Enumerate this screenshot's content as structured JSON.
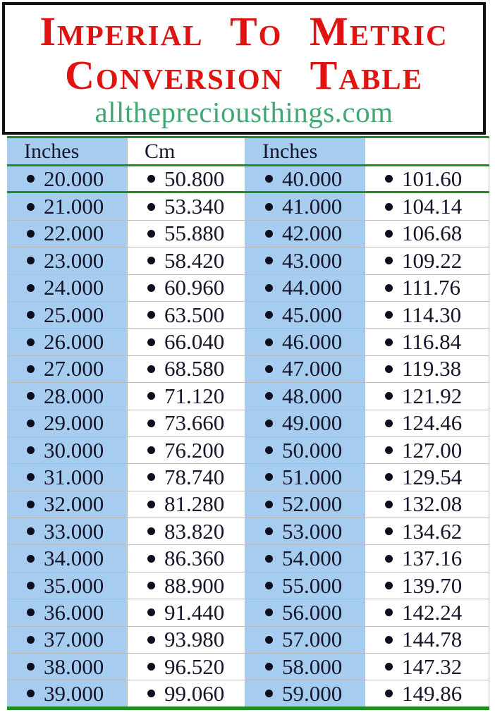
{
  "header": {
    "title_line1": "Imperial To Metric",
    "title_line2": "Conversion Table",
    "website": "allthepreciousthings.com"
  },
  "table": {
    "columns": [
      "Inches",
      "Cm",
      "Inches",
      ""
    ],
    "rows": [
      [
        "20.000",
        "50.800",
        "40.000",
        "101.60"
      ],
      [
        "21.000",
        "53.340",
        "41.000",
        "104.14"
      ],
      [
        "22.000",
        "55.880",
        "42.000",
        "106.68"
      ],
      [
        "23.000",
        "58.420",
        "43.000",
        "109.22"
      ],
      [
        "24.000",
        "60.960",
        "44.000",
        "111.76"
      ],
      [
        "25.000",
        "63.500",
        "45.000",
        "114.30"
      ],
      [
        "26.000",
        "66.040",
        "46.000",
        "116.84"
      ],
      [
        "27.000",
        "68.580",
        "47.000",
        "119.38"
      ],
      [
        "28.000",
        "71.120",
        "48.000",
        "121.92"
      ],
      [
        "29.000",
        "73.660",
        "49.000",
        "124.46"
      ],
      [
        "30.000",
        "76.200",
        "50.000",
        "127.00"
      ],
      [
        "31.000",
        "78.740",
        "51.000",
        "129.54"
      ],
      [
        "32.000",
        "81.280",
        "52.000",
        "132.08"
      ],
      [
        "33.000",
        "83.820",
        "53.000",
        "134.62"
      ],
      [
        "34.000",
        "86.360",
        "54.000",
        "137.16"
      ],
      [
        "35.000",
        "88.900",
        "55.000",
        "139.70"
      ],
      [
        "36.000",
        "91.440",
        "56.000",
        "142.24"
      ],
      [
        "37.000",
        "93.980",
        "57.000",
        "144.78"
      ],
      [
        "38.000",
        "96.520",
        "58.000",
        "147.32"
      ],
      [
        "39.000",
        "99.060",
        "59.000",
        "149.86"
      ]
    ]
  },
  "icons": {
    "bullet": "•"
  },
  "colors": {
    "title_red": "#e01212",
    "website_green": "#42a873",
    "cell_blue": "#a6ccf0",
    "line_green": "#1e8e1e",
    "row_divider_gray": "#bdbdbd",
    "text_dark": "#15152b",
    "box_border_black": "#111111"
  }
}
